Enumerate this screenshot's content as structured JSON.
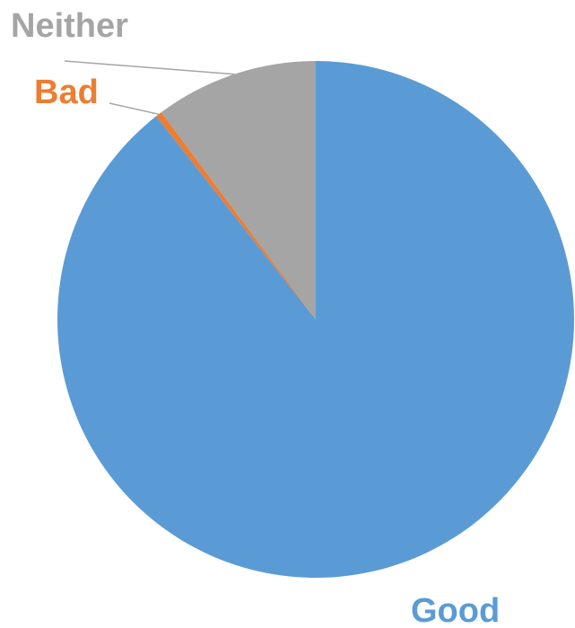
{
  "chart_data": {
    "type": "pie",
    "start_angle_deg": 0,
    "direction": "clockwise",
    "slices": [
      {
        "label": "Good",
        "value": 89.4,
        "color": "#5B9BD5"
      },
      {
        "label": "Bad",
        "value": 0.4,
        "color": "#ED7D31"
      },
      {
        "label": "Neither",
        "value": 10.2,
        "color": "#A5A5A5"
      }
    ],
    "label_colors": {
      "Good": "#5B9BD5",
      "Bad": "#ED7D31",
      "Neither": "#A5A5A5"
    },
    "leader_line_color": "#A5A5A5"
  }
}
